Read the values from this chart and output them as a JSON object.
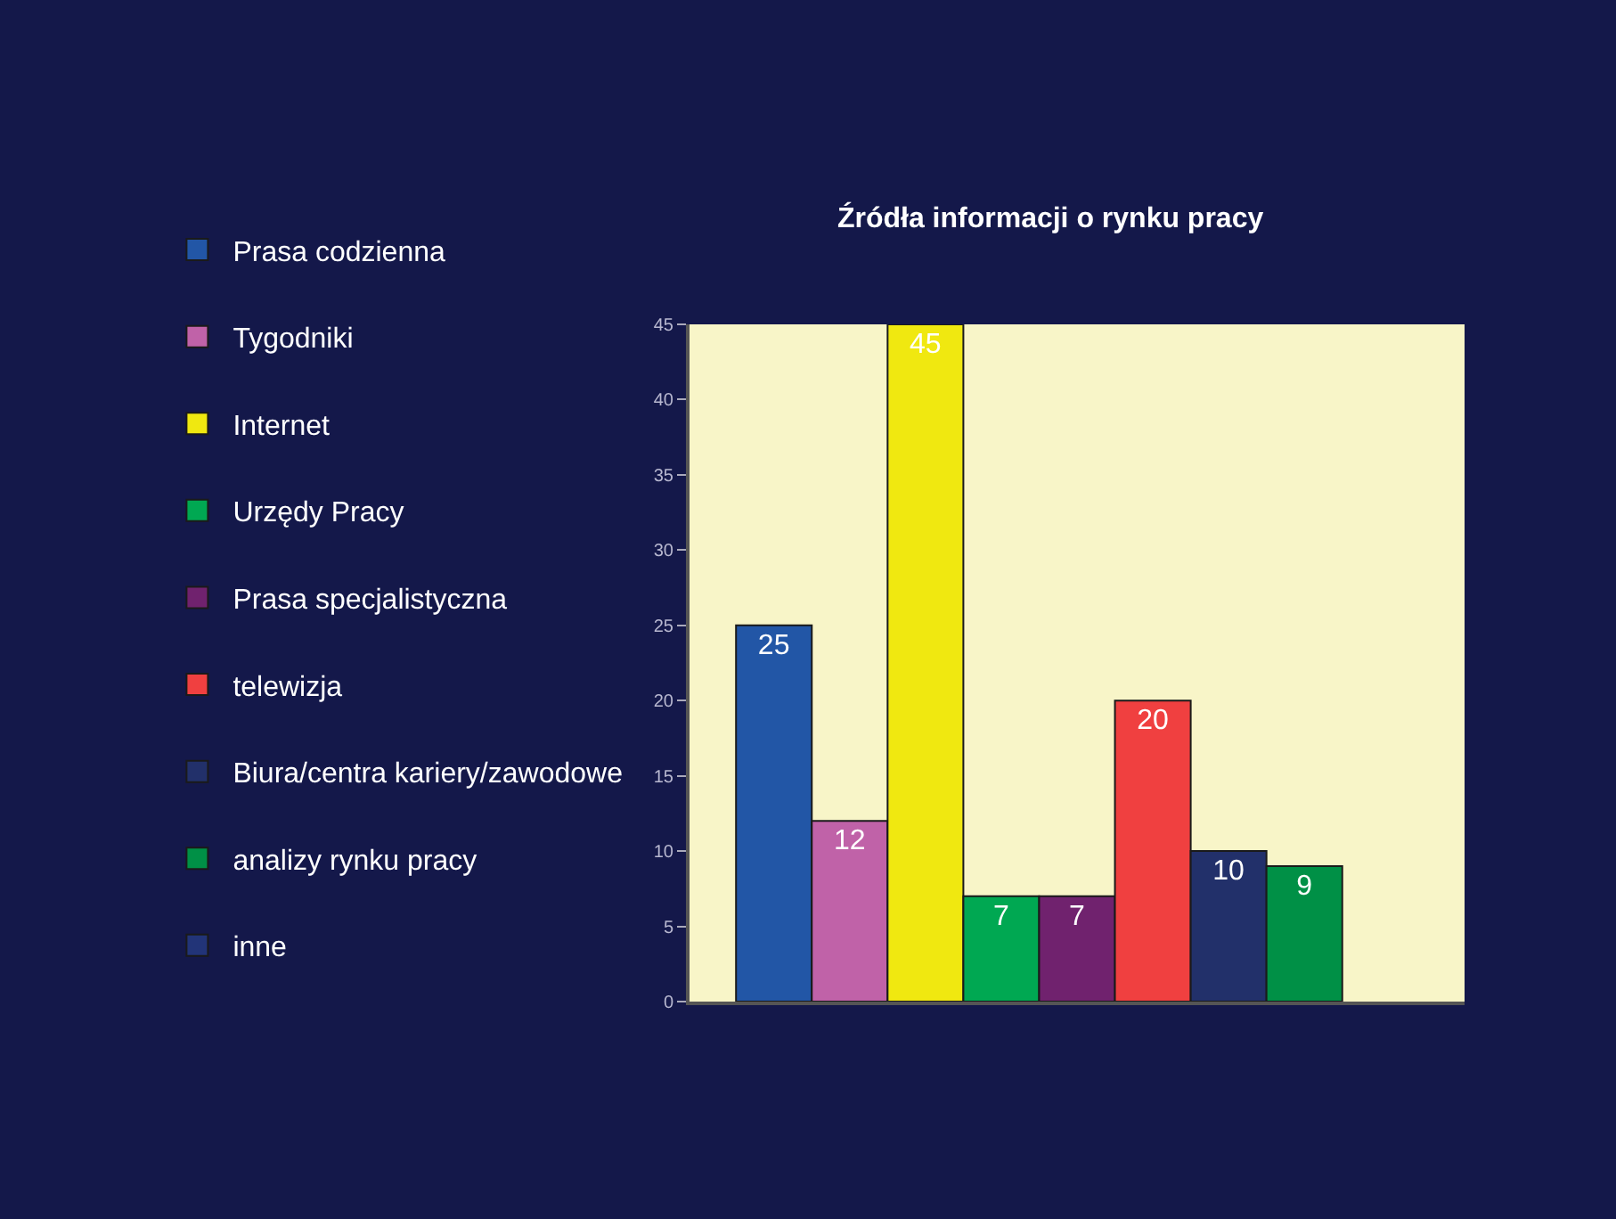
{
  "chart_data": {
    "type": "bar",
    "title": "Źródła informacji o rynku pracy",
    "categories": [
      null
    ],
    "series": [
      {
        "name": "Prasa codzienna",
        "color": "#2256a6",
        "values": [
          25
        ]
      },
      {
        "name": "Tygodniki",
        "color": "#c062a8",
        "values": [
          12
        ]
      },
      {
        "name": "Internet",
        "color": "#f0e810",
        "values": [
          45
        ]
      },
      {
        "name": "Urzędy Pracy",
        "color": "#00a852",
        "values": [
          7
        ]
      },
      {
        "name": "Prasa specjalistyczna",
        "color": "#70226e",
        "values": [
          7
        ]
      },
      {
        "name": "telewizja",
        "color": "#f04040",
        "values": [
          20
        ]
      },
      {
        "name": "Biura/centra kariery/zawodowe",
        "color": "#22306a",
        "values": [
          10
        ]
      },
      {
        "name": "analizy rynku pracy",
        "color": "#009046",
        "values": [
          9
        ]
      },
      {
        "name": "inne",
        "color": "#223478",
        "values": [
          null
        ]
      }
    ],
    "ylim": [
      0,
      45
    ],
    "yticks": [
      0,
      5,
      10,
      15,
      20,
      25,
      30,
      35,
      40,
      45
    ],
    "grid": false,
    "legend": "left",
    "data_labels": true
  }
}
